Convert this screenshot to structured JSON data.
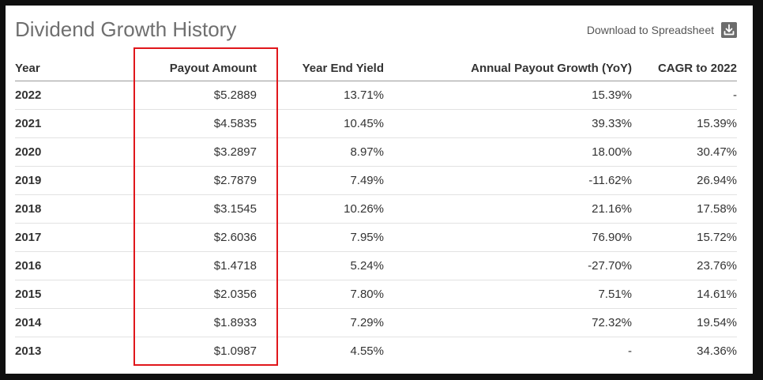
{
  "title": "Dividend Growth History",
  "download_label": "Download to Spreadsheet",
  "download_icon": "download-icon",
  "highlight_color": "#e0161b",
  "columns": {
    "year": "Year",
    "payout": "Payout Amount",
    "yield": "Year End Yield",
    "growth": "Annual Payout Growth (YoY)",
    "cagr": "CAGR to 2022"
  },
  "rows": [
    {
      "year": "2022",
      "payout": "$5.2889",
      "yield": "13.71%",
      "growth": "15.39%",
      "cagr": "-"
    },
    {
      "year": "2021",
      "payout": "$4.5835",
      "yield": "10.45%",
      "growth": "39.33%",
      "cagr": "15.39%"
    },
    {
      "year": "2020",
      "payout": "$3.2897",
      "yield": "8.97%",
      "growth": "18.00%",
      "cagr": "30.47%"
    },
    {
      "year": "2019",
      "payout": "$2.7879",
      "yield": "7.49%",
      "growth": "-11.62%",
      "cagr": "26.94%"
    },
    {
      "year": "2018",
      "payout": "$3.1545",
      "yield": "10.26%",
      "growth": "21.16%",
      "cagr": "17.58%"
    },
    {
      "year": "2017",
      "payout": "$2.6036",
      "yield": "7.95%",
      "growth": "76.90%",
      "cagr": "15.72%"
    },
    {
      "year": "2016",
      "payout": "$1.4718",
      "yield": "5.24%",
      "growth": "-27.70%",
      "cagr": "23.76%"
    },
    {
      "year": "2015",
      "payout": "$2.0356",
      "yield": "7.80%",
      "growth": "7.51%",
      "cagr": "14.61%"
    },
    {
      "year": "2014",
      "payout": "$1.8933",
      "yield": "7.29%",
      "growth": "72.32%",
      "cagr": "19.54%"
    },
    {
      "year": "2013",
      "payout": "$1.0987",
      "yield": "4.55%",
      "growth": "-",
      "cagr": "34.36%"
    }
  ]
}
